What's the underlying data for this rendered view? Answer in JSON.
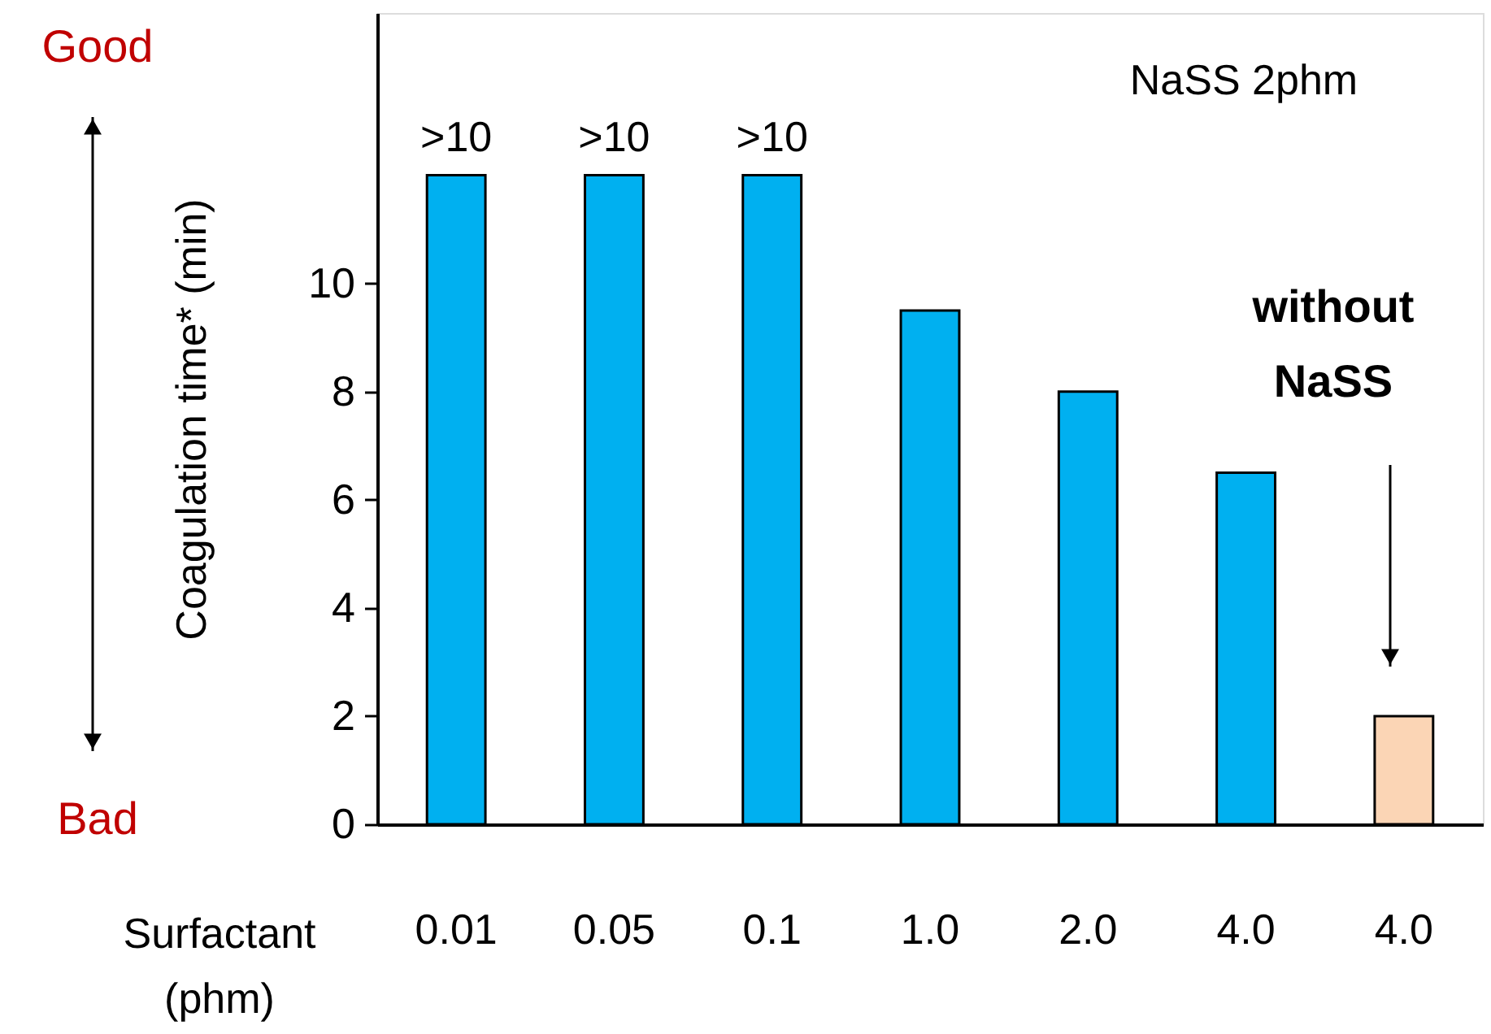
{
  "chart_data": {
    "type": "bar",
    "categories": [
      "0.01",
      "0.05",
      "0.1",
      "1.0",
      "2.0",
      "4.0",
      "4.0"
    ],
    "values": [
      12,
      12,
      12,
      9.5,
      8,
      6.5,
      2
    ],
    "colors": [
      "#00b0f0",
      "#00b0f0",
      "#00b0f0",
      "#00b0f0",
      "#00b0f0",
      "#00b0f0",
      "#fbd5b5"
    ],
    "value_labels": [
      ">10",
      ">10",
      ">10",
      null,
      null,
      null,
      null
    ],
    "xlabel": "Surfactant (phm)",
    "ylabel": "Coagulation time* (min)",
    "ylim": [
      0,
      15
    ],
    "yticks": [
      0,
      2,
      4,
      6,
      8,
      10
    ],
    "annotations": [
      "NaSS 2phm",
      "without NaSS",
      "Good",
      "Bad"
    ],
    "grid": false
  }
}
